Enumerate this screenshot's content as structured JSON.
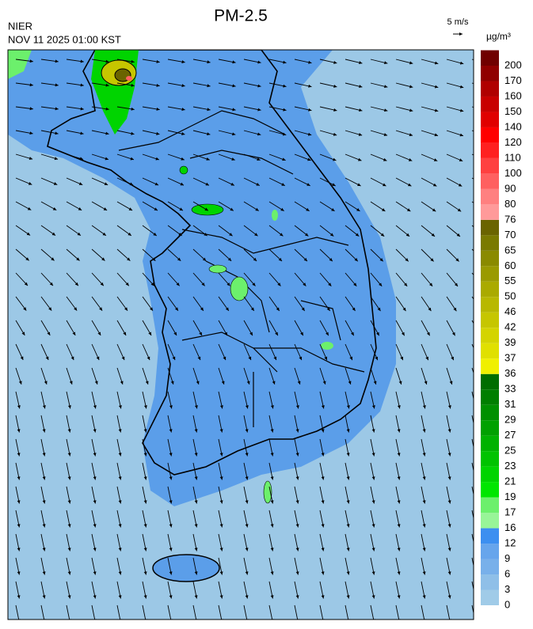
{
  "header": {
    "agency": "NIER",
    "datetime": "NOV 11 2025 01:00 KST",
    "title": "PM-2.5",
    "wind_scale": "5 m/s"
  },
  "colorbar": {
    "unit": "µg/m³",
    "ticks": [
      0,
      3,
      6,
      9,
      12,
      16,
      17,
      19,
      21,
      23,
      25,
      27,
      29,
      31,
      33,
      36,
      37,
      39,
      42,
      46,
      50,
      55,
      60,
      65,
      70,
      76,
      80,
      90,
      100,
      110,
      120,
      140,
      150,
      160,
      170,
      200
    ],
    "colors": [
      "#a0cbe8",
      "#8fbfe8",
      "#78b0ea",
      "#67a5ec",
      "#3d8ff0",
      "#98f598",
      "#6cf06c",
      "#00e600",
      "#00d400",
      "#00c300",
      "#00b200",
      "#00a100",
      "#009000",
      "#007f00",
      "#006e00",
      "#f0f000",
      "#e0e000",
      "#d4d400",
      "#c6c600",
      "#b8b800",
      "#aaaa00",
      "#9a9a00",
      "#8a8a00",
      "#7a7a00",
      "#6a6400",
      "#ff9a9a",
      "#ff8080",
      "#ff6060",
      "#ff4040",
      "#ff2020",
      "#ff0000",
      "#e00000",
      "#c80000",
      "#b00000",
      "#900000",
      "#700000"
    ]
  }
}
